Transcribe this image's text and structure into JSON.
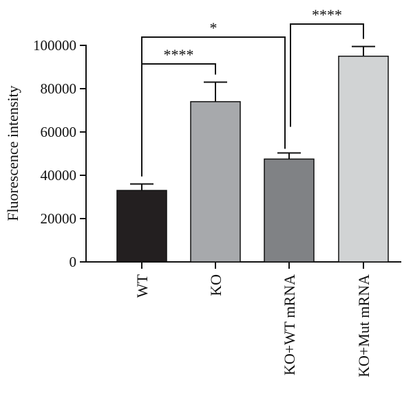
{
  "chart_data": {
    "type": "bar",
    "title": "",
    "xlabel": "",
    "ylabel": "Fluorescence intensity",
    "ylim": [
      0,
      100000
    ],
    "yticks": [
      0,
      20000,
      40000,
      60000,
      80000,
      100000
    ],
    "ytick_labels": [
      "0",
      "20000",
      "40000",
      "60000",
      "80000",
      "100000"
    ],
    "categories": [
      "WT",
      "KO",
      "KO+WT mRNA",
      "KO+Mut mRNA"
    ],
    "values": [
      33000,
      74000,
      47500,
      95000
    ],
    "errors": [
      3000,
      9000,
      2800,
      4500
    ],
    "bar_colors": [
      "#231f20",
      "#a7a9ac",
      "#808285",
      "#d1d3d4"
    ],
    "significance": [
      {
        "from": 0,
        "to": 1,
        "label": "****",
        "level": 1
      },
      {
        "from": 0,
        "to": 2,
        "label": "*",
        "level": 2
      },
      {
        "from": 2,
        "to": 3,
        "label": "****",
        "level": 3
      }
    ],
    "grid": false,
    "legend": "none"
  }
}
